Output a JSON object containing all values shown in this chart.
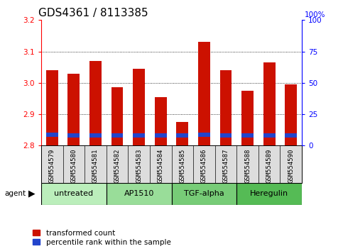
{
  "title": "GDS4361 / 8113385",
  "samples": [
    "GSM554579",
    "GSM554580",
    "GSM554581",
    "GSM554582",
    "GSM554583",
    "GSM554584",
    "GSM554585",
    "GSM554586",
    "GSM554587",
    "GSM554588",
    "GSM554589",
    "GSM554590"
  ],
  "red_values": [
    3.04,
    3.03,
    3.07,
    2.985,
    3.045,
    2.955,
    2.875,
    3.13,
    3.04,
    2.975,
    3.065,
    2.995
  ],
  "blue_values": [
    2.835,
    2.833,
    2.833,
    2.833,
    2.832,
    2.832,
    2.832,
    2.835,
    2.833,
    2.833,
    2.833,
    2.833
  ],
  "ymin": 2.8,
  "ymax": 3.2,
  "yticks_left": [
    2.8,
    2.9,
    3.0,
    3.1,
    3.2
  ],
  "yticks_right": [
    0,
    25,
    50,
    75,
    100
  ],
  "groups": [
    {
      "label": "untreated",
      "start": 0,
      "end": 3,
      "color": "#bbeebb"
    },
    {
      "label": "AP1510",
      "start": 3,
      "end": 6,
      "color": "#99dd99"
    },
    {
      "label": "TGF-alpha",
      "start": 6,
      "end": 9,
      "color": "#77cc77"
    },
    {
      "label": "Heregulin",
      "start": 9,
      "end": 12,
      "color": "#55bb55"
    }
  ],
  "bar_width": 0.55,
  "bar_color_red": "#cc1100",
  "bar_color_blue": "#2244cc",
  "title_fontsize": 11,
  "tick_fontsize": 7.5,
  "label_fontsize": 8,
  "legend_fontsize": 7.5,
  "sample_fontsize": 6.5
}
